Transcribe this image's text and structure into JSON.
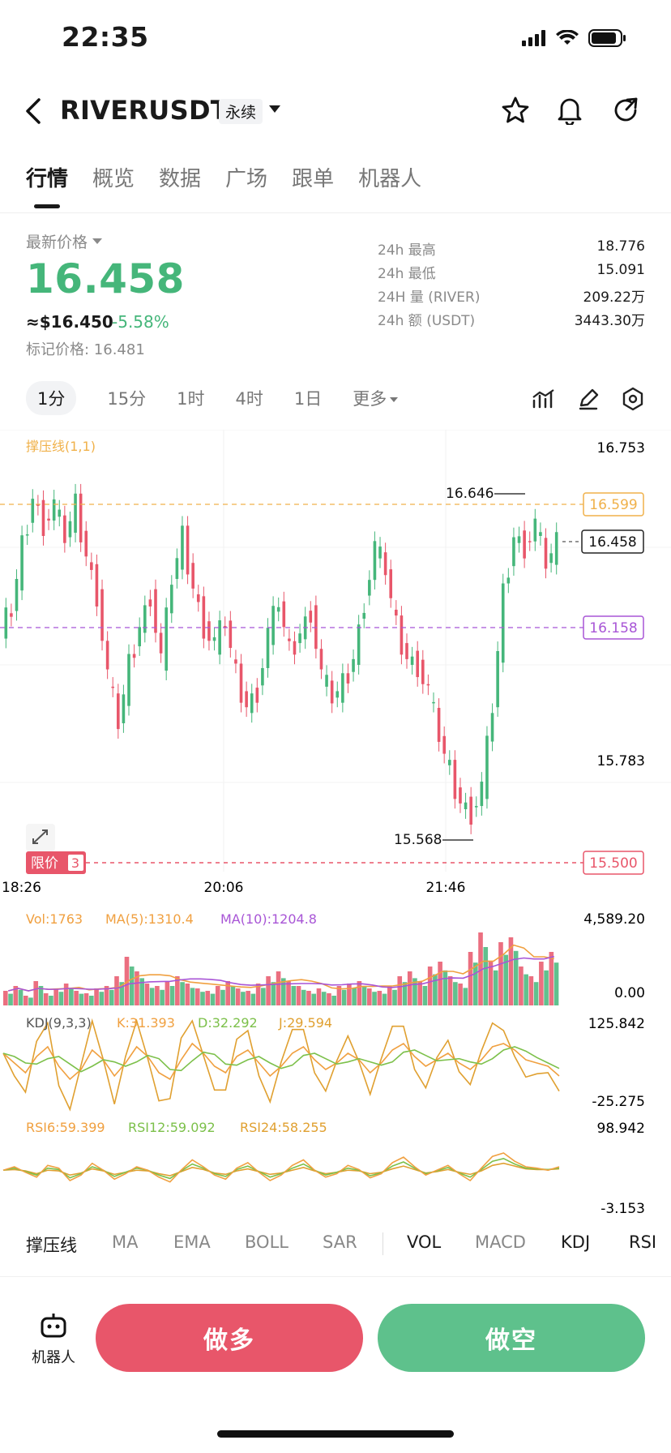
{
  "status_bar": {
    "time": "22:35"
  },
  "header": {
    "symbol": "RIVERUSDT",
    "contract_type": "永续"
  },
  "tabs": [
    {
      "label": "行情",
      "active": true
    },
    {
      "label": "概览"
    },
    {
      "label": "数据"
    },
    {
      "label": "广场"
    },
    {
      "label": "跟单"
    },
    {
      "label": "机器人"
    }
  ],
  "price": {
    "latest_label": "最新价格",
    "value": "16.458",
    "usd_equivalent": "≈$16.450",
    "change_pct": "-5.58%",
    "mark_price": "标记价格: 16.481"
  },
  "stats": [
    {
      "label": "24h  最高",
      "value": "18.776"
    },
    {
      "label": "24h  最低",
      "value": "15.091"
    },
    {
      "label": "24H  量 (RIVER)",
      "value": "209.22万"
    },
    {
      "label": "24h  额 (USDT)",
      "value": "3443.30万"
    }
  ],
  "timeframes": [
    {
      "label": "1分",
      "active": true
    },
    {
      "label": "15分"
    },
    {
      "label": "1时"
    },
    {
      "label": "4时"
    },
    {
      "label": "1日"
    },
    {
      "label": "更多"
    }
  ],
  "colors": {
    "up": "#45b67a",
    "down": "#e8566a",
    "sr_line": "#f0b14a",
    "ma_line": "#a855d6"
  },
  "chart_data": {
    "type": "candlestick",
    "indicator_label": "撑压线(1,1)",
    "price_axis": {
      "top": "16.753",
      "mid": "15.783"
    },
    "resistance": "16.599",
    "current": "16.458",
    "support_mid": "16.158",
    "limit_price": "15.500",
    "limit_label": "限价",
    "limit_count": "3",
    "high_marker": "16.646",
    "low_marker": "15.568",
    "ylim": [
      15.45,
      16.8
    ],
    "x_ticks": [
      "18:26",
      "20:06",
      "21:46"
    ],
    "close_series": [
      16.25,
      16.45,
      16.6,
      16.52,
      16.58,
      16.48,
      16.58,
      16.42,
      16.3,
      16.05,
      15.9,
      16.08,
      16.2,
      16.3,
      16.1,
      16.35,
      16.48,
      16.32,
      16.2,
      16.15,
      16.22,
      16.05,
      15.95,
      16.0,
      16.18,
      16.28,
      16.12,
      16.18,
      16.25,
      16.05,
      15.98,
      16.02,
      16.1,
      16.28,
      16.45,
      16.38,
      16.2,
      16.1,
      16.08,
      16.0,
      15.86,
      15.75,
      15.65,
      15.62,
      15.7,
      15.95,
      16.3,
      16.48,
      16.45,
      16.52,
      16.4,
      16.46
    ],
    "volume": {
      "label": "Vol:1763",
      "ma5": "MA(5):1310.4",
      "ma10": "MA(10):1204.8",
      "max": "4,589.20",
      "min": "0.00",
      "bars": [
        6,
        8,
        4,
        10,
        5,
        7,
        9,
        6,
        5,
        7,
        8,
        12,
        20,
        14,
        9,
        8,
        10,
        12,
        9,
        7,
        6,
        8,
        10,
        7,
        6,
        9,
        12,
        14,
        10,
        8,
        6,
        7,
        5,
        8,
        9,
        10,
        7,
        6,
        8,
        12,
        14,
        10,
        16,
        18,
        12,
        9,
        22,
        30,
        18,
        26,
        28,
        16,
        12,
        18,
        22
      ]
    },
    "kdj": {
      "label": "KDJ(9,3,3)",
      "k": "K:31.393",
      "d": "D:32.292",
      "j": "J:29.594",
      "max": "125.842",
      "min": "-25.275",
      "k_series": [
        70,
        55,
        40,
        65,
        80,
        50,
        30,
        45,
        75,
        60,
        35,
        55,
        80,
        65,
        40,
        30,
        60,
        85,
        70,
        50,
        40,
        65,
        75,
        55,
        35,
        50,
        70,
        80,
        60,
        45,
        55,
        70,
        60,
        40,
        55,
        75,
        85,
        65,
        50,
        60,
        70,
        55,
        45,
        60,
        80,
        85,
        75,
        60,
        55,
        50,
        35
      ]
    },
    "rsi": {
      "label6": "RSI6:59.399",
      "label12": "RSI12:59.092",
      "label24": "RSI24:58.255",
      "max": "98.942",
      "min": "-3.153",
      "r6": [
        55,
        60,
        52,
        45,
        62,
        58,
        40,
        48,
        65,
        55,
        42,
        50,
        60,
        55,
        45,
        38,
        55,
        70,
        60,
        48,
        42,
        58,
        66,
        52,
        40,
        48,
        62,
        70,
        55,
        45,
        50,
        62,
        56,
        44,
        50,
        66,
        74,
        60,
        48,
        55,
        62,
        50,
        40,
        58,
        75,
        80,
        68,
        60,
        58,
        55,
        60
      ],
      "r12": [
        55,
        58,
        53,
        48,
        58,
        56,
        44,
        50,
        60,
        55,
        46,
        52,
        58,
        55,
        48,
        43,
        54,
        64,
        58,
        50,
        46,
        56,
        61,
        53,
        45,
        50,
        58,
        64,
        55,
        48,
        52,
        58,
        55,
        47,
        51,
        61,
        67,
        58,
        50,
        54,
        59,
        51,
        45,
        56,
        68,
        72,
        64,
        58,
        57,
        56,
        58
      ],
      "r24": [
        55,
        56,
        54,
        50,
        55,
        54,
        48,
        51,
        57,
        54,
        49,
        52,
        55,
        54,
        50,
        47,
        53,
        59,
        56,
        51,
        49,
        54,
        57,
        53,
        49,
        51,
        55,
        59,
        54,
        50,
        52,
        55,
        54,
        50,
        52,
        57,
        61,
        56,
        51,
        53,
        56,
        52,
        49,
        54,
        62,
        65,
        61,
        57,
        56,
        56,
        57
      ]
    }
  },
  "indicator_tabs": [
    {
      "label": "撑压线",
      "selected": true
    },
    {
      "label": "MA"
    },
    {
      "label": "EMA"
    },
    {
      "label": "BOLL"
    },
    {
      "label": "SAR"
    },
    {
      "label": "VOL",
      "selected": true
    },
    {
      "label": "MACD"
    },
    {
      "label": "KDJ",
      "selected": true
    },
    {
      "label": "RSI",
      "selected": true
    }
  ],
  "actions": {
    "robot_label": "机器人",
    "long_label": "做多",
    "short_label": "做空"
  }
}
